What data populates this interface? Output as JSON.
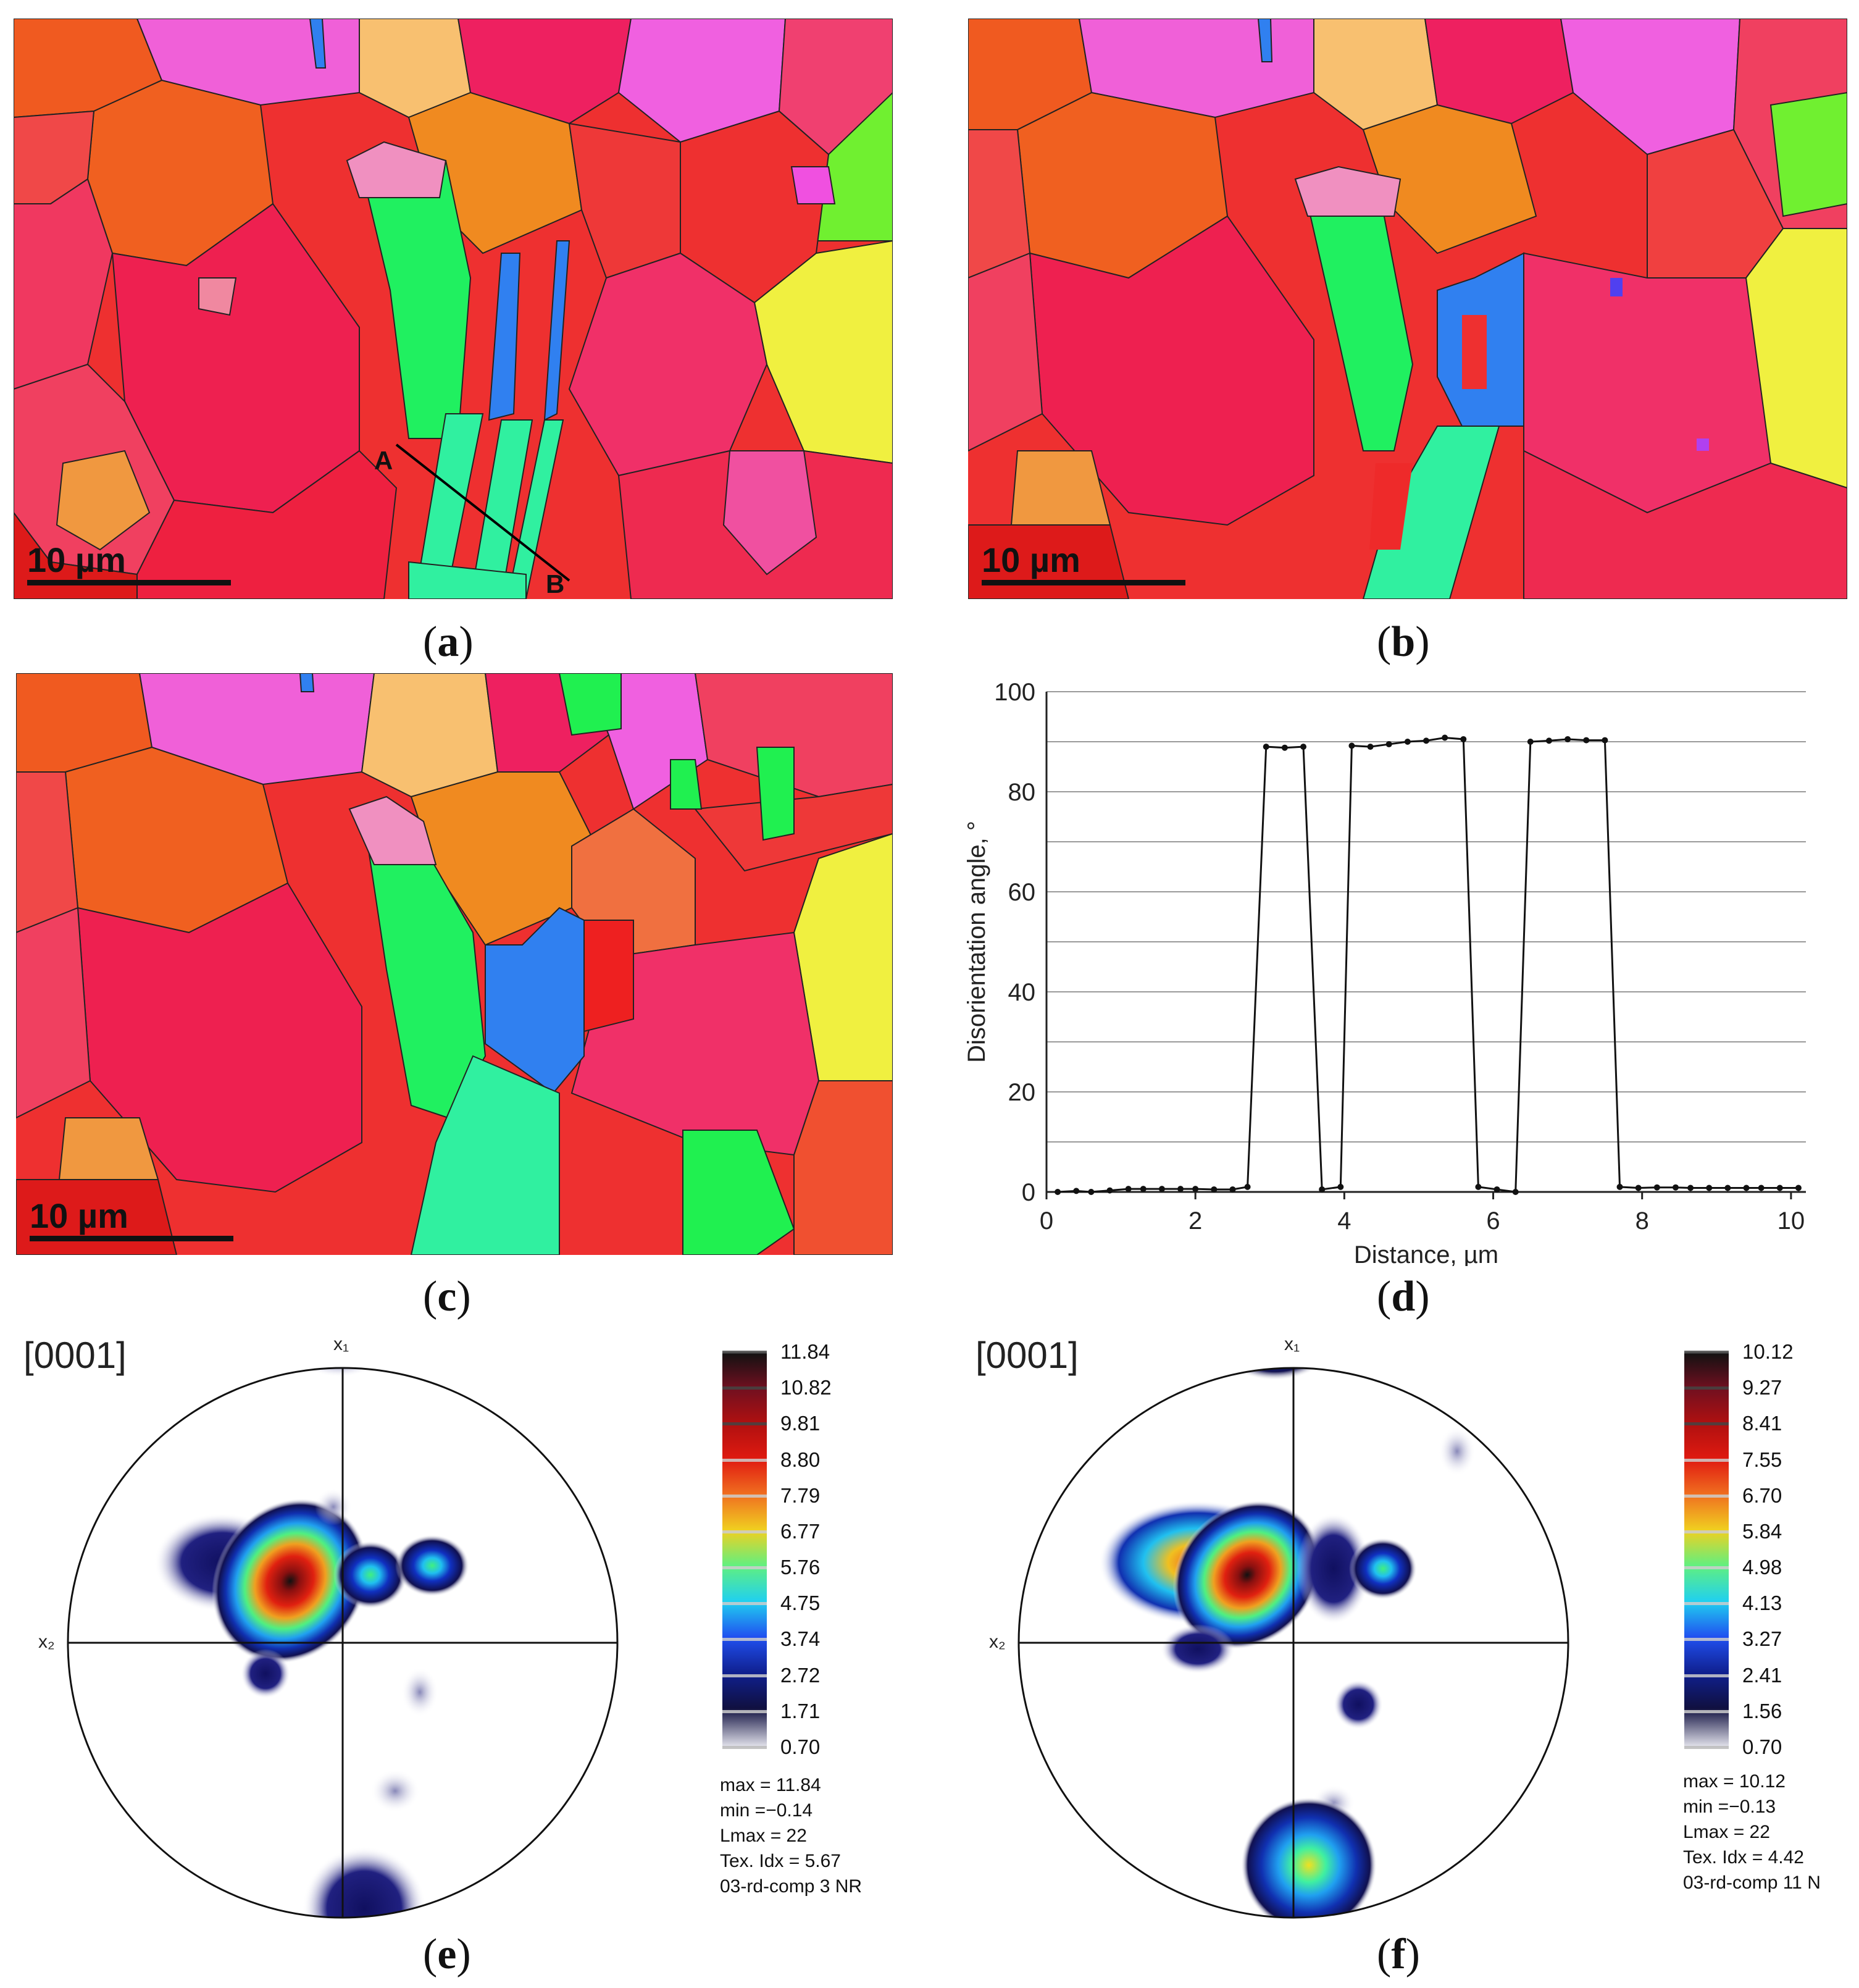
{
  "panels": {
    "a": {
      "caption": "a",
      "scale": "10 µm",
      "line_start": "A",
      "line_end": "B"
    },
    "b": {
      "caption": "b",
      "scale": "10 µm"
    },
    "c": {
      "caption": "c",
      "scale": "10 µm"
    },
    "d": {
      "caption": "d"
    },
    "e": {
      "caption": "e"
    },
    "f": {
      "caption": "f"
    }
  },
  "colors": {
    "red": "#ee2a2a",
    "pink": "#f03a6e",
    "orange": "#f06a20",
    "magenta": "#f060e0",
    "green": "#20f060",
    "cyan": "#30f0a0",
    "blue": "#3080f0",
    "yellow": "#f0f040",
    "light_orange": "#f8c070"
  },
  "chart_data": {
    "type": "line",
    "title": "",
    "xlabel": "Distance, µm",
    "ylabel": "Disorientation angle, °",
    "xlim": [
      0,
      10.2
    ],
    "ylim": [
      0,
      100
    ],
    "xticks": [
      "0",
      "2",
      "4",
      "6",
      "8",
      "10"
    ],
    "yticks": [
      "0",
      "20",
      "40",
      "60",
      "80",
      "100"
    ],
    "grid": true,
    "x": [
      0.15,
      0.4,
      0.6,
      0.85,
      1.1,
      1.3,
      1.55,
      1.8,
      2.0,
      2.25,
      2.5,
      2.7,
      2.95,
      3.2,
      3.45,
      3.7,
      3.95,
      4.1,
      4.35,
      4.6,
      4.85,
      5.1,
      5.35,
      5.6,
      5.8,
      6.05,
      6.3,
      6.5,
      6.75,
      7.0,
      7.25,
      7.5,
      7.7,
      7.95,
      8.2,
      8.45,
      8.65,
      8.9,
      9.15,
      9.4,
      9.6,
      9.85,
      10.1
    ],
    "y": [
      0,
      0.2,
      0,
      0.3,
      0.6,
      0.6,
      0.6,
      0.6,
      0.6,
      0.5,
      0.5,
      1,
      89,
      88.8,
      89,
      0.5,
      1,
      89.2,
      89,
      89.5,
      90,
      90.2,
      90.8,
      90.5,
      1,
      0.5,
      0,
      90,
      90.2,
      90.5,
      90.3,
      90.3,
      1,
      0.8,
      0.9,
      0.9,
      0.8,
      0.8,
      0.8,
      0.8,
      0.8,
      0.8,
      0.8
    ]
  },
  "pole_figures": [
    {
      "id": "e",
      "label": "[0001]",
      "x1": "x₁",
      "x2": "x₂",
      "legend": [
        "11.84",
        "10.82",
        "9.81",
        "8.80",
        "7.79",
        "6.77",
        "5.76",
        "4.75",
        "3.74",
        "2.72",
        "1.71",
        "0.70"
      ],
      "stats": [
        "max = 11.84",
        "min =−0.14",
        "Lmax = 22",
        "Tex. Idx = 5.67",
        "03-rd-comp 3 NR"
      ]
    },
    {
      "id": "f",
      "label": "[0001]",
      "x1": "x₁",
      "x2": "x₂",
      "legend": [
        "10.12",
        "9.27",
        "8.41",
        "7.55",
        "6.70",
        "5.84",
        "4.98",
        "4.13",
        "3.27",
        "2.41",
        "1.56",
        "0.70"
      ],
      "stats": [
        "max = 10.12",
        "min =−0.13",
        "Lmax = 22",
        "Tex. Idx = 4.42",
        "03-rd-comp 11 N"
      ]
    }
  ],
  "legend_colors": [
    "#111111",
    "#6a1020",
    "#a01010",
    "#e01010",
    "#f07020",
    "#f0d020",
    "#60f080",
    "#20d0f0",
    "#2050f0",
    "#102090",
    "#101040",
    "#e8e8f0"
  ]
}
